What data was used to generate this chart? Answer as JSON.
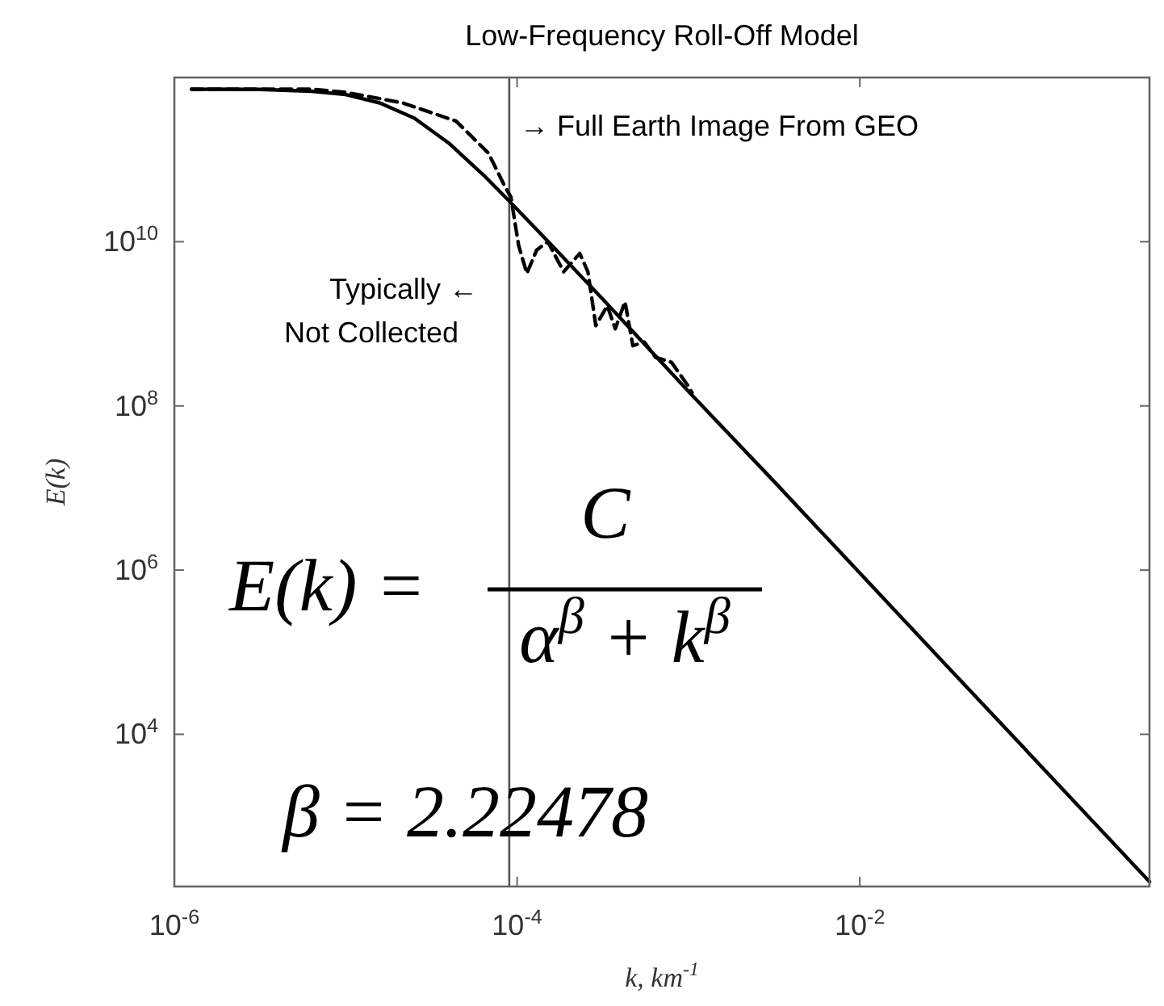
{
  "chart_data": {
    "type": "line",
    "title": "Low-Frequency Roll-Off Model",
    "xlabel": "k, km$^{-1}$",
    "ylabel": "E(k)",
    "log": "xy",
    "xlim": [
      1e-06,
      0.49
    ],
    "ylim": [
      140,
      1000000000000.0
    ],
    "xticks": [
      {
        "value": 1e-06,
        "label": "10$^{-6}$"
      },
      {
        "value": 0.0001,
        "label": "10$^{-4}$"
      },
      {
        "value": 0.01,
        "label": "10$^{-2}$"
      }
    ],
    "yticks": [
      {
        "value": 10000.0,
        "label": "10$^{4}$"
      },
      {
        "value": 1000000.0,
        "label": "10$^{6}$"
      },
      {
        "value": 100000000.0,
        "label": "10$^{8}$"
      },
      {
        "value": 10000000000.0,
        "label": "10$^{10}$"
      }
    ],
    "grid": false,
    "ref_lines": [
      {
        "axis": "x",
        "value": 9e-05,
        "color": "#555555"
      }
    ],
    "series": [
      {
        "color": "#000000",
        "line_style": "solid",
        "x": [
          1.26e-06,
          3.16e-06,
          6.3e-06,
          1e-05,
          1.58e-05,
          2.51e-05,
          3.98e-05,
          6.31e-05,
          8.9e-05,
          0.000158,
          0.000316,
          0.001,
          0.00316,
          0.01,
          0.0316,
          0.1,
          0.49
        ],
        "values": [
          720000000000.0,
          715000000000.0,
          680000000000.0,
          620000000000.0,
          490000000000.0,
          320000000000.0,
          160000000000.0,
          66000000000.0,
          32000000000.0,
          9200000000.0,
          2000000000.0,
          150000000.0,
          12000000.0,
          920000.0,
          71000.0,
          5500.0,
          160
        ]
      },
      {
        "color": "#000000",
        "line_style": "dashed",
        "x": [
          1.26e-06,
          6.3e-06,
          1e-05,
          2.15e-05,
          4.4e-05,
          6.8e-05,
          8.4e-05,
          9.2e-05,
          0.000102,
          0.000114,
          0.00013,
          0.000151,
          0.000187,
          0.000232,
          0.000259,
          0.000288,
          0.000336,
          0.000374,
          0.000426,
          0.000474,
          0.000552,
          0.000643,
          0.000796,
          0.00099,
          0.00105
        ],
        "values": [
          720000000000.0,
          720000000000.0,
          660000000000.0,
          490000000000.0,
          295000000000.0,
          120000000000.0,
          49000000000.0,
          35000000000.0,
          9100000000.0,
          4100000000.0,
          7900000000.0,
          10000000000.0,
          4300000000.0,
          7200000000.0,
          4300000000.0,
          950000000.0,
          1660000000.0,
          870000000.0,
          1860000000.0,
          540000000.0,
          600000000.0,
          390000000.0,
          340000000.0,
          178000000.0,
          145000000.0
        ]
      }
    ],
    "annotations": [
      "→ Full Earth Image From GEO",
      "Typically ←\nNot Collected",
      "E(k) =",
      "C",
      "α$^{β}$ + k$^{β}$",
      "β = 2.22478"
    ]
  }
}
